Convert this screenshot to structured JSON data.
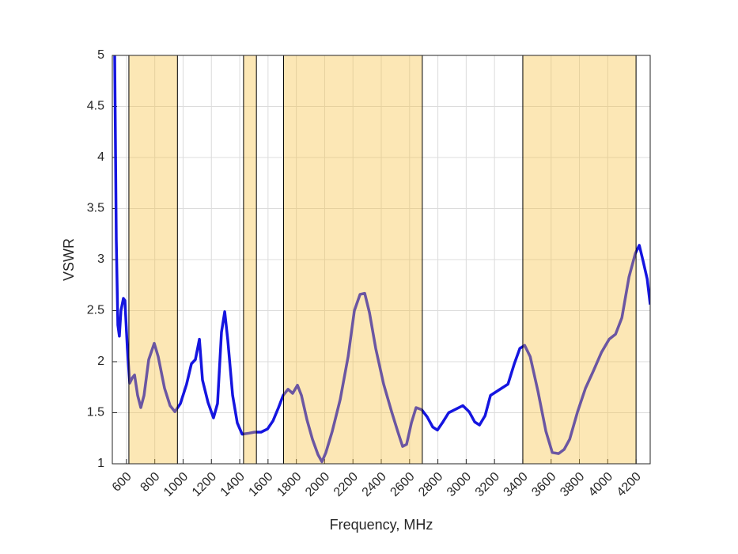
{
  "chart_data": {
    "type": "line",
    "x_label": "Frequency, MHz",
    "y_label": "VSWR",
    "xlim": [
      500,
      4300
    ],
    "ylim": [
      1,
      5
    ],
    "xticks": [
      600,
      800,
      1000,
      1200,
      1400,
      1600,
      1800,
      2000,
      2200,
      2400,
      2600,
      2800,
      3000,
      3200,
      3400,
      3600,
      3800,
      4000,
      4200
    ],
    "yticks": [
      1,
      1.5,
      2,
      2.5,
      3,
      3.5,
      4,
      4.5,
      5
    ],
    "grid": true,
    "bands": [
      [
        617,
        960
      ],
      [
        1427,
        1518
      ],
      [
        1710,
        2690
      ],
      [
        3400,
        4200
      ]
    ],
    "band_color": "#f7c13c",
    "band_alpha": 0.38,
    "series": [
      {
        "color": "#1515e0",
        "x": [
          517,
          528,
          539,
          550,
          561,
          578,
          589,
          606,
          623,
          640,
          657,
          679,
          701,
          724,
          757,
          796,
          824,
          869,
          908,
          942,
          981,
          1025,
          1059,
          1087,
          1115,
          1137,
          1176,
          1215,
          1243,
          1271,
          1294,
          1316,
          1350,
          1383,
          1417,
          1467,
          1506,
          1551,
          1596,
          1635,
          1674,
          1707,
          1741,
          1774,
          1808,
          1836,
          1875,
          1914,
          1953,
          1981,
          2009,
          2054,
          2110,
          2166,
          2210,
          2250,
          2283,
          2317,
          2361,
          2417,
          2473,
          2518,
          2551,
          2579,
          2613,
          2646,
          2685,
          2724,
          2764,
          2797,
          2836,
          2876,
          2920,
          2976,
          3021,
          3060,
          3094,
          3133,
          3172,
          3228,
          3295,
          3340,
          3379,
          3413,
          3452,
          3507,
          3563,
          3608,
          3653,
          3692,
          3731,
          3787,
          3843,
          3899,
          3955,
          4010,
          4055,
          4100,
          4150,
          4195,
          4223,
          4251,
          4279,
          4300
        ],
        "values": [
          5,
          3.2,
          2.36,
          2.25,
          2.5,
          2.62,
          2.6,
          2.13,
          1.79,
          1.84,
          1.87,
          1.67,
          1.55,
          1.67,
          2.02,
          2.18,
          2.05,
          1.74,
          1.57,
          1.51,
          1.59,
          1.78,
          1.98,
          2.02,
          2.22,
          1.82,
          1.6,
          1.45,
          1.59,
          2.29,
          2.49,
          2.21,
          1.67,
          1.4,
          1.29,
          1.3,
          1.31,
          1.31,
          1.34,
          1.42,
          1.55,
          1.67,
          1.73,
          1.69,
          1.77,
          1.67,
          1.43,
          1.24,
          1.09,
          1.02,
          1.11,
          1.32,
          1.63,
          2.05,
          2.5,
          2.66,
          2.67,
          2.48,
          2.13,
          1.78,
          1.51,
          1.31,
          1.17,
          1.19,
          1.4,
          1.55,
          1.53,
          1.46,
          1.36,
          1.33,
          1.41,
          1.5,
          1.53,
          1.57,
          1.51,
          1.41,
          1.38,
          1.47,
          1.67,
          1.72,
          1.78,
          1.98,
          2.13,
          2.16,
          2.05,
          1.71,
          1.32,
          1.11,
          1.1,
          1.14,
          1.24,
          1.51,
          1.74,
          1.91,
          2.09,
          2.22,
          2.27,
          2.43,
          2.83,
          3.06,
          3.14,
          2.98,
          2.81,
          2.56
        ]
      }
    ]
  }
}
